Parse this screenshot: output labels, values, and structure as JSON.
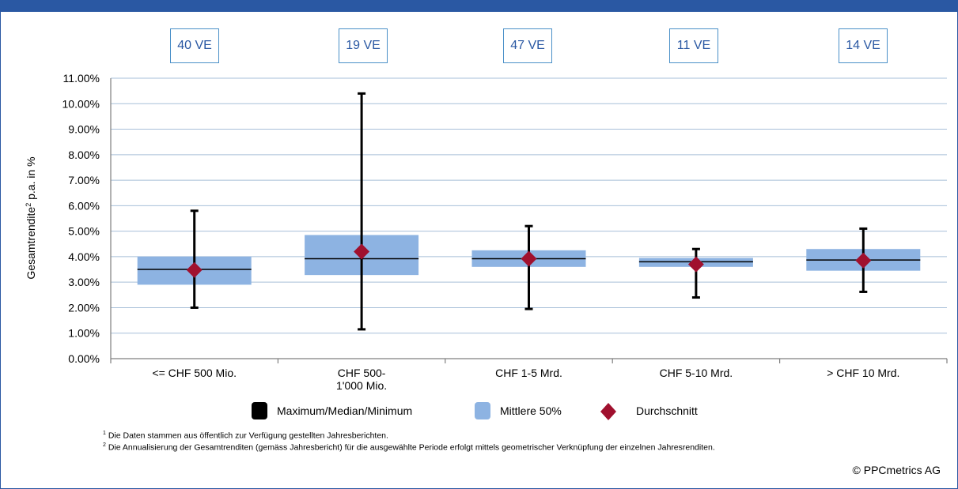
{
  "colors": {
    "frame": "#2a58a3",
    "box_fill": "#8db3e2",
    "grid": "#a7bfd8",
    "mean_marker": "#a0102e",
    "count_text": "#2a58a3",
    "count_border": "#4a90c8"
  },
  "counts": [
    "40 VE",
    "19 VE",
    "47 VE",
    "11 VE",
    "14 VE"
  ],
  "chart_data": {
    "type": "boxplot",
    "ylabel_main": "Gesamtrendite",
    "ylabel_sup": "2",
    "ylabel_rest": " p.a. in %",
    "ylim": [
      0,
      11
    ],
    "ytick_labels": [
      "0.00%",
      "1.00%",
      "2.00%",
      "3.00%",
      "4.00%",
      "5.00%",
      "6.00%",
      "7.00%",
      "8.00%",
      "9.00%",
      "10.00%",
      "11.00%"
    ],
    "grid": true,
    "categories": [
      [
        "<= CHF 500 Mio."
      ],
      [
        "CHF 500-",
        "1'000 Mio."
      ],
      [
        "CHF 1-5 Mrd."
      ],
      [
        "CHF 5-10 Mrd."
      ],
      [
        "> CHF 10 Mrd."
      ]
    ],
    "series": [
      {
        "name": "Maximum",
        "values": [
          5.8,
          10.4,
          5.2,
          4.3,
          5.1
        ]
      },
      {
        "name": "Q3",
        "values": [
          4.0,
          4.85,
          4.25,
          3.95,
          4.3
        ]
      },
      {
        "name": "Median",
        "values": [
          3.5,
          3.92,
          3.92,
          3.8,
          3.87
        ]
      },
      {
        "name": "Q1",
        "values": [
          2.9,
          3.28,
          3.6,
          3.6,
          3.45
        ]
      },
      {
        "name": "Minimum",
        "values": [
          2.0,
          1.15,
          1.95,
          2.4,
          2.62
        ]
      },
      {
        "name": "Durchschnitt",
        "values": [
          3.48,
          4.2,
          3.92,
          3.7,
          3.85
        ]
      }
    ],
    "legend_position": "bottom"
  },
  "legend": {
    "maxmedmin": "Maximum/Median/Minimum",
    "mid50": "Mittlere 50%",
    "mean": "Durchschnitt"
  },
  "footnotes": {
    "note1_sup": "1",
    "note1": " Die Daten stammen aus öffentlich zur Verfügung gestellten Jahresberichten.",
    "note2_sup": "2",
    "note2": " Die Annualisierung der Gesamtrenditen (gemäss Jahresbericht) für die ausgewählte Periode erfolgt mittels geometrischer Verknüpfung der einzelnen Jahresrenditen."
  },
  "copyright": "© PPCmetrics AG"
}
